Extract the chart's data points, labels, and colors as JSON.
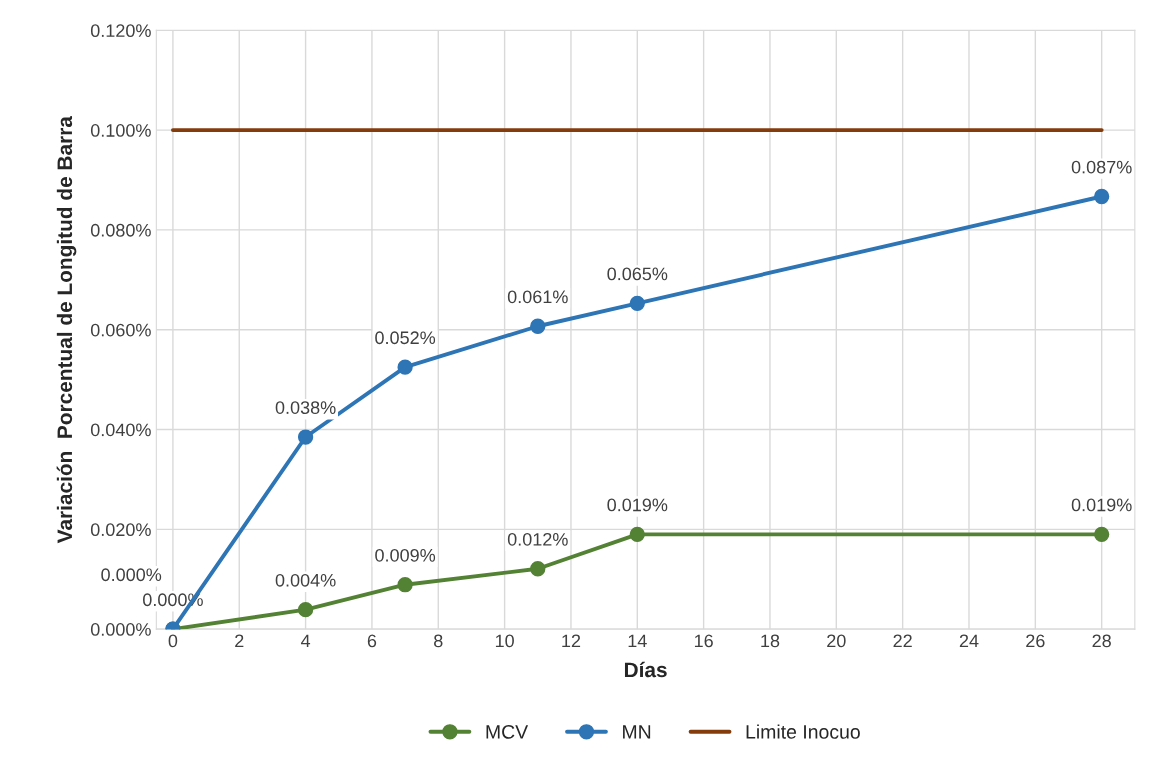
{
  "chart_data": {
    "type": "line",
    "xlabel": "Días",
    "ylabel": "Variación  Porcentual de Longitud de Barra",
    "series": [
      {
        "name": "MCV",
        "color": "#548235",
        "x": [
          0,
          4,
          7,
          11,
          14,
          28
        ],
        "values": [
          0,
          0.0039,
          0.0089,
          0.0121,
          0.019,
          0.019
        ],
        "value_labels": [
          "0.000%",
          "0.004%",
          "0.009%",
          "0.012%",
          "0.019%",
          "0.019%"
        ],
        "marker": "circle"
      },
      {
        "name": "MN",
        "color": "#2e75b6",
        "x": [
          0,
          4,
          7,
          11,
          14,
          28
        ],
        "values": [
          0,
          0.0385,
          0.0525,
          0.0607,
          0.0653,
          0.0867
        ],
        "value_labels": [
          "0.000%",
          "0.038%",
          "0.052%",
          "0.061%",
          "0.065%",
          "0.087%"
        ],
        "marker": "circle"
      },
      {
        "name": "Limite Inocuo",
        "color": "#843c0c",
        "x": [
          0,
          28
        ],
        "values": [
          0.1,
          0.1
        ],
        "marker": "none"
      }
    ],
    "xlim": [
      -0.5,
      29
    ],
    "xticks": [
      0,
      2,
      4,
      6,
      8,
      10,
      12,
      14,
      16,
      18,
      20,
      22,
      24,
      26,
      28
    ],
    "ylim": [
      0,
      0.12
    ],
    "yticks": [
      {
        "value": 0,
        "label": "0.000%"
      },
      {
        "value": 0.02,
        "label": "0.020%"
      },
      {
        "value": 0.04,
        "label": "0.040%"
      },
      {
        "value": 0.06,
        "label": "0.060%"
      },
      {
        "value": 0.08,
        "label": "0.080%"
      },
      {
        "value": 0.1,
        "label": "0.100%"
      },
      {
        "value": 0.12,
        "label": "0.120%"
      }
    ],
    "grid": true,
    "legend": "bottom"
  }
}
